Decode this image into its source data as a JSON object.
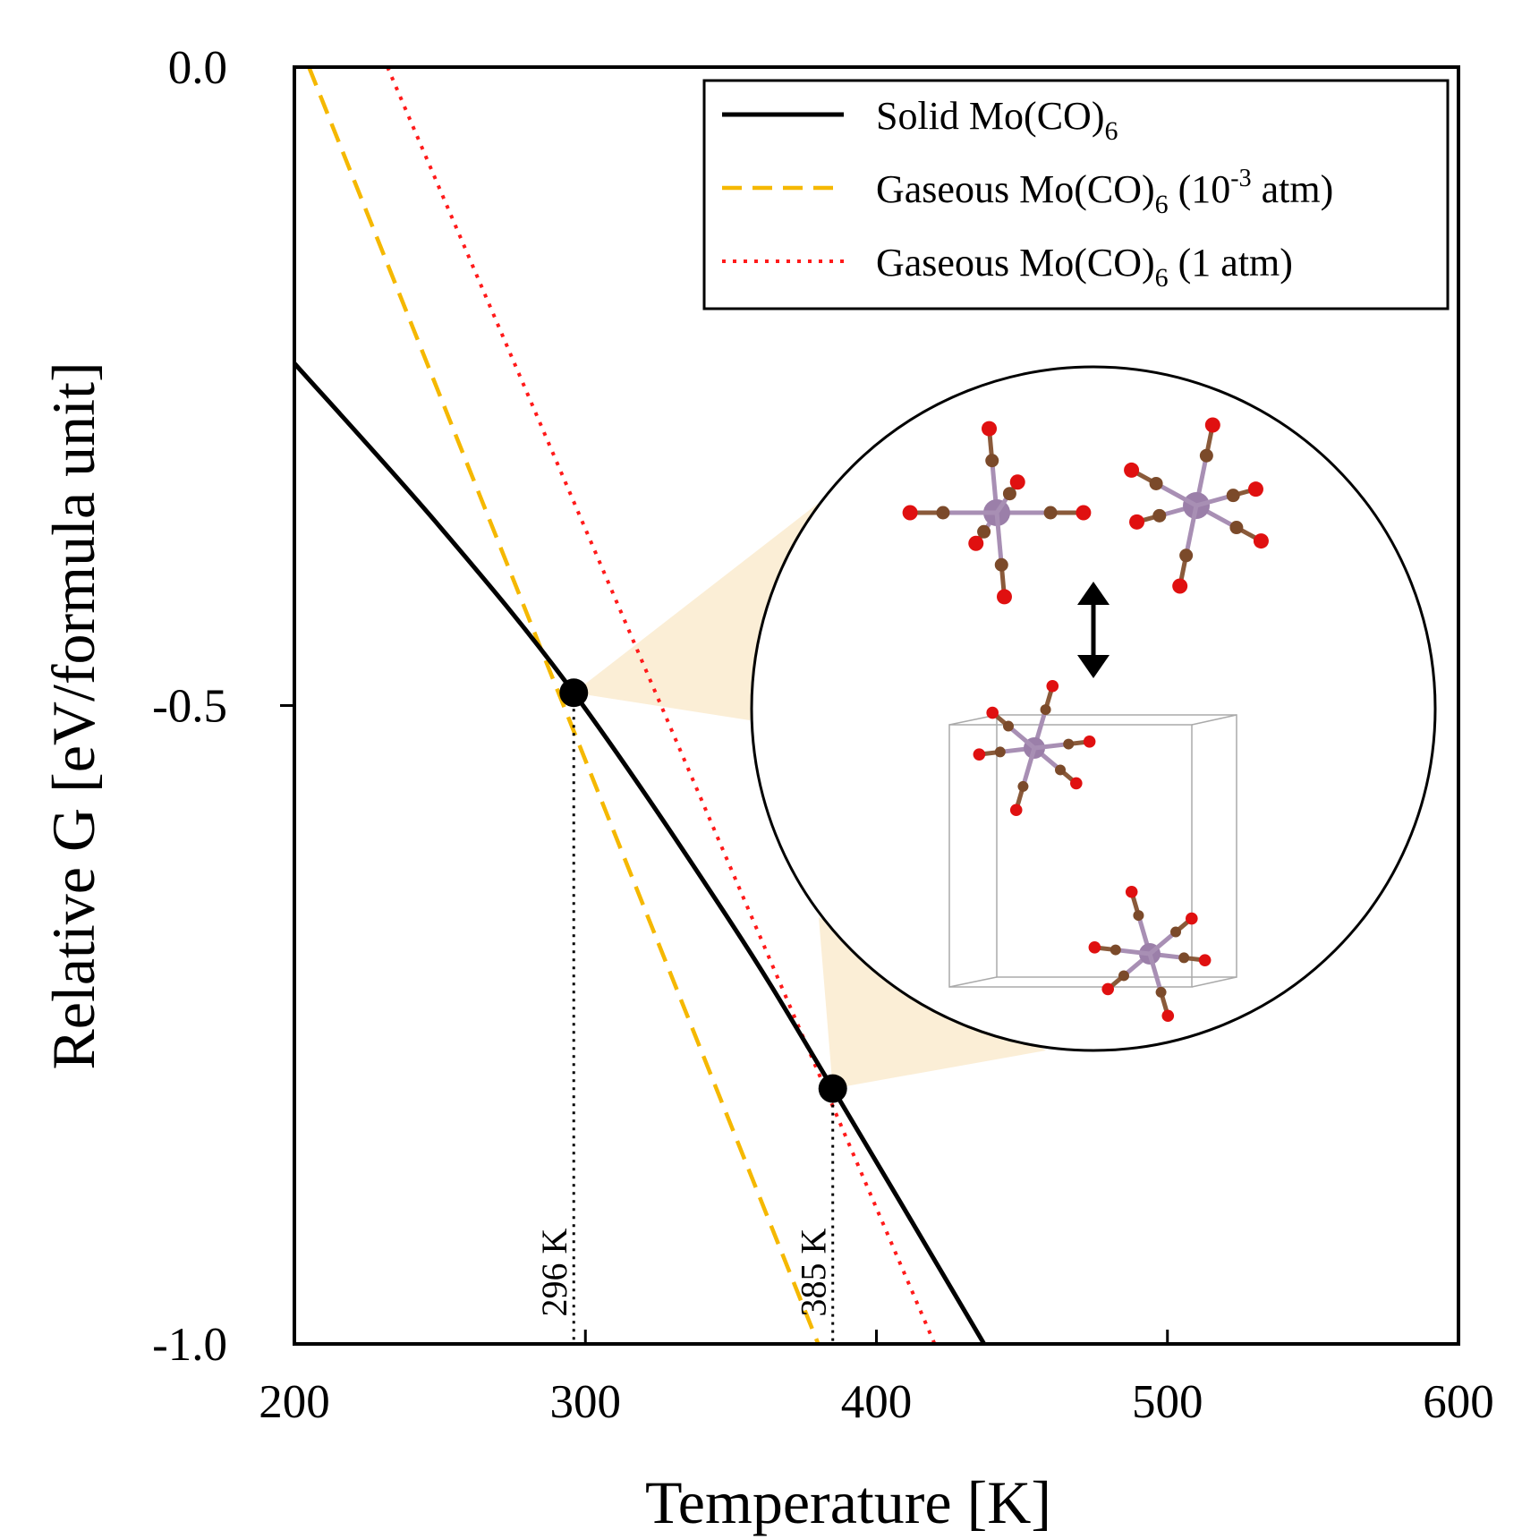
{
  "chart_data": {
    "type": "line",
    "xlabel": "Temperature [K]",
    "ylabel": "Relative G [eV/formula unit]",
    "xlim": [
      200,
      600
    ],
    "ylim": [
      -1.0,
      0.0
    ],
    "xticks": [
      "200",
      "300",
      "400",
      "500",
      "600"
    ],
    "yticks": [
      "0.0",
      "-0.5",
      "-1.0"
    ],
    "grid": false,
    "legend_position": "top-right",
    "series": [
      {
        "name": "Solid Mo(CO)6",
        "label_main": "Solid Mo(CO)",
        "label_sub": "6",
        "label_tail": "",
        "label_sup": "",
        "label_end": "",
        "style": "solid",
        "color": "#000000",
        "x": [
          200,
          250,
          296,
          350,
          385,
          437
        ],
        "y": [
          -0.232,
          -0.36,
          -0.49,
          -0.67,
          -0.8,
          -1.0
        ]
      },
      {
        "name": "Gaseous Mo(CO)6 (10-3 atm)",
        "label_main": "Gaseous Mo(CO)",
        "label_sub": "6",
        "label_tail": " (10",
        "label_sup": "-3",
        "label_end": " atm)",
        "style": "dashed",
        "color": "#f5b800",
        "x": [
          205,
          380
        ],
        "y": [
          0.0,
          -1.0
        ]
      },
      {
        "name": "Gaseous Mo(CO)6 (1 atm)",
        "label_main": "Gaseous Mo(CO)",
        "label_sub": "6",
        "label_tail": " (1 atm)",
        "label_sup": "",
        "label_end": "",
        "style": "dotted",
        "color": "#ff1a1a",
        "x": [
          232,
          420
        ],
        "y": [
          0.0,
          -1.0
        ]
      }
    ],
    "annotations": [
      {
        "label": "296 K",
        "x": 296,
        "y": -0.49
      },
      {
        "label": "385 K",
        "x": 385,
        "y": -0.8
      }
    ],
    "inset": {
      "highlight_color": "#fbeed6",
      "atom_colors": {
        "Mo": "#9b7fa9",
        "C": "#7b4a2a",
        "O": "#e01010"
      }
    }
  }
}
